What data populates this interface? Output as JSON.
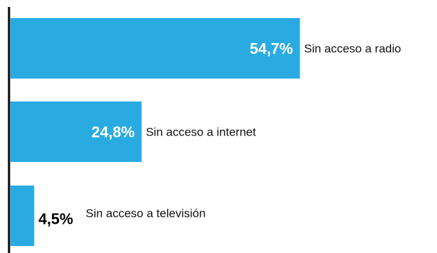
{
  "chart_data": {
    "type": "bar",
    "orientation": "horizontal",
    "categories": [
      "Sin acceso a radio",
      "Sin acceso a internet",
      "Sin acceso a televisión"
    ],
    "values": [
      54.7,
      24.8,
      4.5
    ],
    "value_labels": [
      "54,7%",
      "24,8%",
      "4,5%"
    ],
    "unit": "%",
    "title": "",
    "xlabel": "",
    "ylabel": "",
    "xlim": [
      0,
      80
    ],
    "grid": false,
    "legend": "none",
    "colors": {
      "bar": "#29abe2",
      "label_inside": "#ffffff",
      "label_outside": "#000000",
      "axis": "#000000"
    }
  }
}
